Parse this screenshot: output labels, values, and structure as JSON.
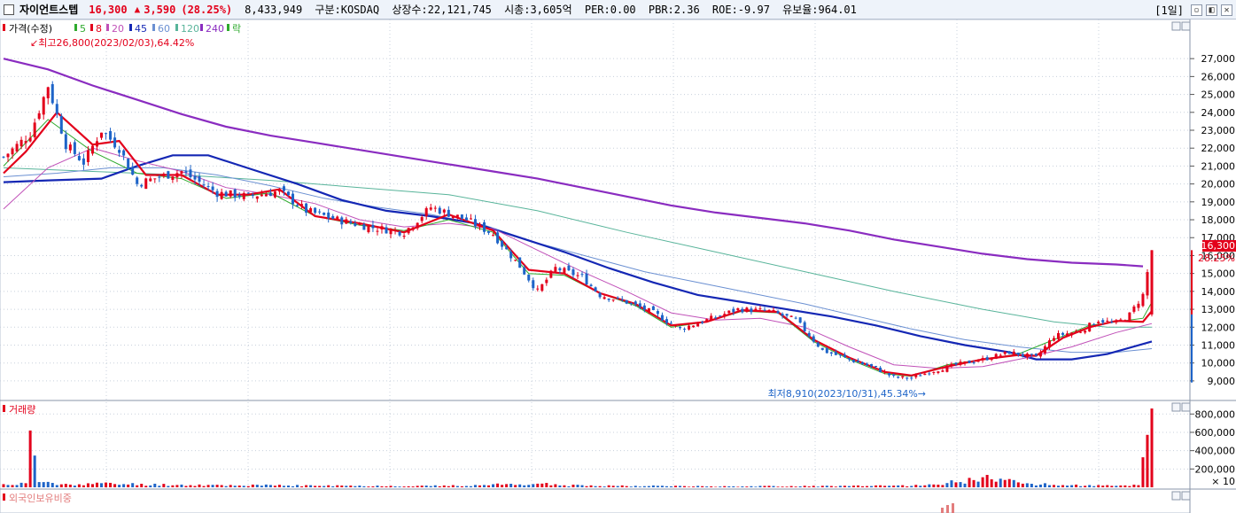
{
  "header": {
    "name": "자이언트스텝",
    "price": "16,300",
    "arrow": "▲",
    "change": "3,590",
    "change_pct": "(28.25%)",
    "volume": "8,433,949",
    "market": "구분:KOSDAQ",
    "listed": "상장수:22,121,745",
    "mcap": "시총:3,605억",
    "per": "PER:0.00",
    "pbr": "PBR:2.36",
    "roe": "ROE:-9.97",
    "float": "유보율:964.01",
    "period": "[1일]",
    "btn_min": "▫",
    "btn_max": "◧",
    "btn_close": "✕"
  },
  "colors": {
    "up": "#e3001b",
    "down": "#1e64c8",
    "ma5": "#2eaa2e",
    "ma8": "#e3001b",
    "ma20": "#c050b8",
    "ma45": "#1427b4",
    "ma60": "#6b90d2",
    "ma120": "#58b49a",
    "ma240": "#8a2cc0",
    "grid": "#c8d0dc"
  },
  "legend": {
    "price_label": "가격(수정)",
    "ma5": "5",
    "ma8": "8",
    "ma20": "20",
    "ma45": "45",
    "ma60": "60",
    "ma120": "120",
    "ma240": "240",
    "fall": "락",
    "volume_label": "거래량",
    "foreign_label": "외국인보유비중"
  },
  "annotations": {
    "high": "최고26,800(2023/02/03),64.42%",
    "low": "최저8,910(2023/10/31),45.34%"
  },
  "current_tag": {
    "price": "16,300",
    "pct": "28.25%"
  },
  "chart_data": {
    "type": "line",
    "series_kind": "candlestick",
    "price_axis": {
      "ylim": [
        8500,
        27800
      ],
      "ticks": [
        "9,000",
        "10,000",
        "11,000",
        "12,000",
        "13,000",
        "14,000",
        "15,000",
        "16,000",
        "17,000",
        "18,000",
        "19,000",
        "20,000",
        "21,000",
        "22,000",
        "23,000",
        "24,000",
        "25,000",
        "26,000",
        "27,000"
      ],
      "tick_values": [
        9000,
        10000,
        11000,
        12000,
        13000,
        14000,
        15000,
        16000,
        17000,
        18000,
        19000,
        20000,
        21000,
        22000,
        23000,
        24000,
        25000,
        26000,
        27000
      ]
    },
    "volume_axis": {
      "ylim": [
        0,
        880000
      ],
      "ticks": [
        "200,000",
        "400,000",
        "600,000",
        "800,000"
      ],
      "tick_values": [
        200000,
        400000,
        600000,
        800000
      ],
      "unit": "× 10"
    },
    "close_anchors": [
      [
        0,
        21500
      ],
      [
        6,
        22800
      ],
      [
        10,
        25500
      ],
      [
        14,
        22200
      ],
      [
        18,
        21200
      ],
      [
        22,
        23000
      ],
      [
        26,
        22000
      ],
      [
        30,
        20000
      ],
      [
        35,
        20400
      ],
      [
        40,
        20700
      ],
      [
        48,
        19500
      ],
      [
        55,
        19300
      ],
      [
        62,
        19600
      ],
      [
        68,
        18500
      ],
      [
        75,
        18000
      ],
      [
        82,
        17600
      ],
      [
        90,
        17300
      ],
      [
        96,
        18700
      ],
      [
        104,
        18000
      ],
      [
        110,
        17200
      ],
      [
        116,
        15400
      ],
      [
        120,
        14000
      ],
      [
        124,
        15300
      ],
      [
        130,
        14800
      ],
      [
        134,
        13800
      ],
      [
        140,
        13400
      ],
      [
        146,
        12800
      ],
      [
        152,
        11900
      ],
      [
        158,
        12400
      ],
      [
        165,
        13000
      ],
      [
        172,
        12900
      ],
      [
        178,
        12400
      ],
      [
        184,
        10700
      ],
      [
        190,
        10200
      ],
      [
        196,
        9700
      ],
      [
        200,
        9200
      ],
      [
        204,
        9150
      ],
      [
        208,
        9500
      ],
      [
        214,
        9900
      ],
      [
        220,
        10200
      ],
      [
        226,
        10600
      ],
      [
        232,
        10300
      ],
      [
        236,
        11500
      ],
      [
        242,
        11800
      ],
      [
        246,
        12400
      ],
      [
        250,
        12200
      ],
      [
        253,
        12700
      ],
      [
        256,
        13800
      ],
      [
        258,
        16300
      ]
    ],
    "ma_lines": {
      "ma5": [
        [
          0,
          21000
        ],
        [
          10,
          23600
        ],
        [
          20,
          21800
        ],
        [
          30,
          20600
        ],
        [
          40,
          20300
        ],
        [
          50,
          19200
        ],
        [
          60,
          19500
        ],
        [
          70,
          18200
        ],
        [
          80,
          17700
        ],
        [
          90,
          17400
        ],
        [
          100,
          18000
        ],
        [
          110,
          17300
        ],
        [
          118,
          15000
        ],
        [
          126,
          14900
        ],
        [
          134,
          13900
        ],
        [
          142,
          13200
        ],
        [
          150,
          12000
        ],
        [
          158,
          12300
        ],
        [
          166,
          12900
        ],
        [
          174,
          12800
        ],
        [
          182,
          11200
        ],
        [
          190,
          10200
        ],
        [
          198,
          9400
        ],
        [
          204,
          9250
        ],
        [
          212,
          9900
        ],
        [
          220,
          10200
        ],
        [
          228,
          10500
        ],
        [
          236,
          11300
        ],
        [
          244,
          12100
        ],
        [
          250,
          12300
        ],
        [
          256,
          12500
        ],
        [
          258,
          13400
        ]
      ],
      "ma8": [
        [
          0,
          20600
        ],
        [
          5,
          21800
        ],
        [
          12,
          24000
        ],
        [
          20,
          22200
        ],
        [
          26,
          22400
        ],
        [
          32,
          20500
        ],
        [
          40,
          20500
        ],
        [
          48,
          19400
        ],
        [
          55,
          19400
        ],
        [
          62,
          19700
        ],
        [
          70,
          18200
        ],
        [
          80,
          17800
        ],
        [
          90,
          17300
        ],
        [
          100,
          18300
        ],
        [
          110,
          17400
        ],
        [
          118,
          15200
        ],
        [
          126,
          15000
        ],
        [
          134,
          13900
        ],
        [
          142,
          13300
        ],
        [
          150,
          12100
        ],
        [
          158,
          12300
        ],
        [
          166,
          12950
        ],
        [
          174,
          12850
        ],
        [
          182,
          11300
        ],
        [
          190,
          10300
        ],
        [
          198,
          9500
        ],
        [
          204,
          9300
        ],
        [
          212,
          9800
        ],
        [
          220,
          10200
        ],
        [
          228,
          10450
        ],
        [
          232,
          10400
        ],
        [
          238,
          11400
        ],
        [
          244,
          12000
        ],
        [
          250,
          12350
        ],
        [
          256,
          12300
        ],
        [
          258,
          12900
        ]
      ],
      "ma20": [
        [
          0,
          18600
        ],
        [
          10,
          20900
        ],
        [
          20,
          22000
        ],
        [
          30,
          21300
        ],
        [
          40,
          20700
        ],
        [
          50,
          19800
        ],
        [
          60,
          19400
        ],
        [
          70,
          18900
        ],
        [
          80,
          18000
        ],
        [
          90,
          17600
        ],
        [
          100,
          17800
        ],
        [
          110,
          17500
        ],
        [
          120,
          16300
        ],
        [
          130,
          15100
        ],
        [
          140,
          14000
        ],
        [
          150,
          12800
        ],
        [
          160,
          12400
        ],
        [
          170,
          12500
        ],
        [
          180,
          12000
        ],
        [
          190,
          10900
        ],
        [
          200,
          9900
        ],
        [
          210,
          9700
        ],
        [
          220,
          9800
        ],
        [
          230,
          10300
        ],
        [
          240,
          10900
        ],
        [
          250,
          11700
        ],
        [
          258,
          12200
        ]
      ],
      "ma45": [
        [
          0,
          20100
        ],
        [
          10,
          20200
        ],
        [
          22,
          20300
        ],
        [
          30,
          21000
        ],
        [
          38,
          21600
        ],
        [
          46,
          21600
        ],
        [
          56,
          20800
        ],
        [
          66,
          20000
        ],
        [
          76,
          19100
        ],
        [
          86,
          18500
        ],
        [
          96,
          18200
        ],
        [
          106,
          17800
        ],
        [
          116,
          17000
        ],
        [
          126,
          16200
        ],
        [
          136,
          15300
        ],
        [
          146,
          14500
        ],
        [
          156,
          13800
        ],
        [
          166,
          13400
        ],
        [
          176,
          13000
        ],
        [
          186,
          12600
        ],
        [
          196,
          12100
        ],
        [
          206,
          11500
        ],
        [
          216,
          11000
        ],
        [
          226,
          10600
        ],
        [
          232,
          10200
        ],
        [
          240,
          10200
        ],
        [
          248,
          10500
        ],
        [
          258,
          11200
        ]
      ],
      "ma60": [
        [
          0,
          20400
        ],
        [
          12,
          20600
        ],
        [
          24,
          20900
        ],
        [
          36,
          20900
        ],
        [
          48,
          20500
        ],
        [
          60,
          19900
        ],
        [
          72,
          19200
        ],
        [
          84,
          18700
        ],
        [
          96,
          18300
        ],
        [
          108,
          17700
        ],
        [
          120,
          16700
        ],
        [
          132,
          15900
        ],
        [
          144,
          15100
        ],
        [
          156,
          14500
        ],
        [
          168,
          13900
        ],
        [
          180,
          13300
        ],
        [
          192,
          12600
        ],
        [
          204,
          11900
        ],
        [
          216,
          11300
        ],
        [
          228,
          10900
        ],
        [
          240,
          10600
        ],
        [
          250,
          10600
        ],
        [
          258,
          10800
        ]
      ],
      "ma120": [
        [
          0,
          20900
        ],
        [
          20,
          20700
        ],
        [
          40,
          20500
        ],
        [
          60,
          20200
        ],
        [
          80,
          19800
        ],
        [
          100,
          19400
        ],
        [
          120,
          18500
        ],
        [
          140,
          17300
        ],
        [
          160,
          16200
        ],
        [
          180,
          15100
        ],
        [
          200,
          14000
        ],
        [
          220,
          13000
        ],
        [
          236,
          12300
        ],
        [
          248,
          12000
        ],
        [
          258,
          12000
        ]
      ],
      "ma240": [
        [
          0,
          27000
        ],
        [
          10,
          26400
        ],
        [
          20,
          25500
        ],
        [
          30,
          24700
        ],
        [
          40,
          23900
        ],
        [
          50,
          23200
        ],
        [
          60,
          22700
        ],
        [
          70,
          22300
        ],
        [
          80,
          21900
        ],
        [
          90,
          21500
        ],
        [
          100,
          21100
        ],
        [
          110,
          20700
        ],
        [
          120,
          20300
        ],
        [
          130,
          19800
        ],
        [
          140,
          19300
        ],
        [
          150,
          18800
        ],
        [
          160,
          18400
        ],
        [
          170,
          18100
        ],
        [
          180,
          17800
        ],
        [
          190,
          17400
        ],
        [
          200,
          16900
        ],
        [
          210,
          16500
        ],
        [
          220,
          16100
        ],
        [
          230,
          15800
        ],
        [
          240,
          15600
        ],
        [
          250,
          15500
        ],
        [
          256,
          15400
        ]
      ]
    },
    "volume_anchors": [
      [
        0,
        30000
      ],
      [
        5,
        40000
      ],
      [
        6,
        620000
      ],
      [
        8,
        60000
      ],
      [
        12,
        30000
      ],
      [
        20,
        40000
      ],
      [
        40,
        25000
      ],
      [
        60,
        20000
      ],
      [
        80,
        15000
      ],
      [
        100,
        15000
      ],
      [
        120,
        40000
      ],
      [
        126,
        20000
      ],
      [
        160,
        10000
      ],
      [
        200,
        15000
      ],
      [
        210,
        30000
      ],
      [
        220,
        110000
      ],
      [
        230,
        40000
      ],
      [
        236,
        25000
      ],
      [
        243,
        20000
      ],
      [
        250,
        15000
      ],
      [
        255,
        25000
      ],
      [
        258,
        860000
      ]
    ]
  }
}
